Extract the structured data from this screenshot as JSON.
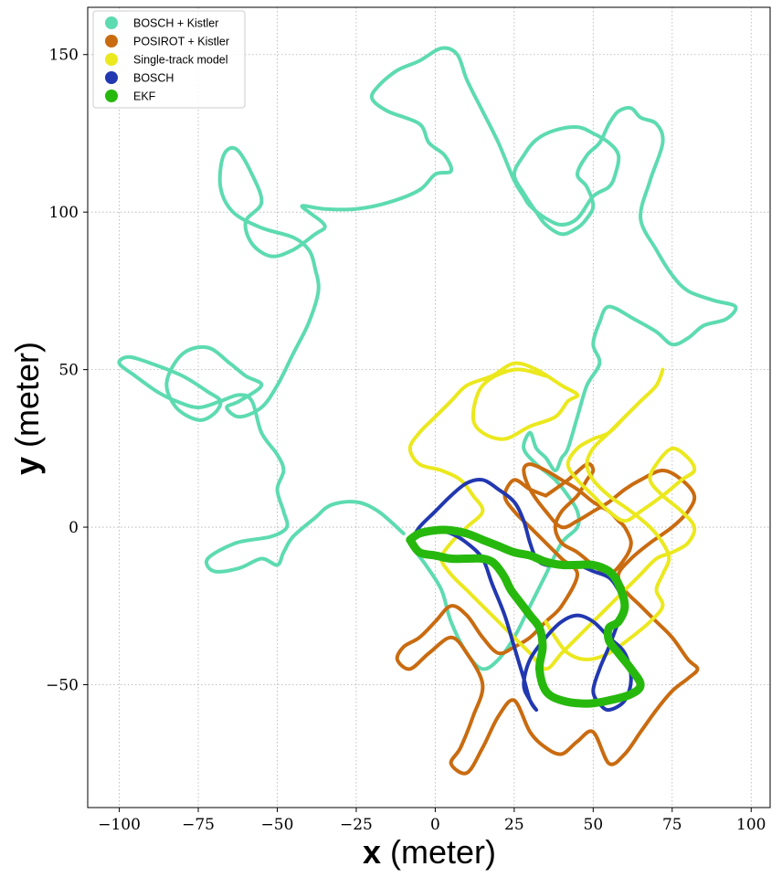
{
  "chart_data": {
    "type": "line",
    "title": "",
    "xlabel_bold": "x",
    "xlabel_unit": "(meter)",
    "ylabel_bold": "y",
    "ylabel_unit": "(meter)",
    "xlim": [
      -110,
      106
    ],
    "ylim": [
      -89,
      165
    ],
    "xticks": [
      -100,
      -75,
      -50,
      -25,
      0,
      25,
      50,
      75,
      100
    ],
    "yticks": [
      -50,
      0,
      50,
      100,
      150
    ],
    "xtick_labels": [
      "−100",
      "−75",
      "−50",
      "−25",
      "0",
      "25",
      "50",
      "75",
      "100"
    ],
    "ytick_labels": [
      "−50",
      "0",
      "50",
      "100",
      "150"
    ],
    "grid": true,
    "grid_style": "dotted",
    "legend_position": "top-left",
    "series": [
      {
        "name": "BOSCH + Kistler",
        "color": "#5ddbb0",
        "x": [
          -10,
          -18,
          -25,
          -33,
          -38,
          -45,
          -48,
          -50,
          -55,
          -62,
          -70,
          -72,
          -63,
          -52,
          -47,
          -48,
          -50,
          -48,
          -50,
          -55,
          -58,
          -62,
          -68,
          -75,
          -82,
          -88,
          -95,
          -100,
          -97,
          -90,
          -80,
          -72,
          -68,
          -70,
          -75,
          -82,
          -85,
          -80,
          -72,
          -65,
          -60,
          -55,
          -62,
          -66,
          -62,
          -55,
          -50,
          -45,
          -40,
          -37,
          -38,
          -40,
          -45,
          -55,
          -64,
          -68,
          -67,
          -63,
          -58,
          -55,
          -60,
          -58,
          -52,
          -45,
          -38,
          -35,
          -36,
          -40,
          -42,
          -35,
          -25,
          -15,
          -5,
          0,
          5,
          3,
          -2,
          -5,
          -15,
          -20,
          -18,
          -12,
          -5,
          2,
          7,
          10,
          15,
          20,
          25,
          28,
          30,
          35,
          40,
          45,
          50,
          55,
          57,
          58,
          55,
          50,
          45,
          38,
          32,
          28,
          25,
          28,
          32,
          35,
          40,
          45,
          48,
          50,
          48,
          45,
          48,
          52,
          55,
          58,
          62,
          65,
          70,
          72,
          68,
          65,
          70,
          75,
          80,
          88,
          95,
          92,
          85,
          80,
          75,
          70,
          63,
          55,
          52,
          50,
          52,
          48,
          45,
          42,
          40,
          38,
          35,
          32,
          30,
          28,
          32,
          38,
          42,
          45,
          45,
          40,
          35,
          30,
          25,
          20,
          15,
          10,
          5,
          2,
          -3,
          -6,
          -8,
          -6,
          -2
        ],
        "y": [
          -2,
          5,
          8,
          7,
          3,
          -3,
          -8,
          -12,
          -10,
          -13,
          -14,
          -10,
          -5,
          -3,
          0,
          5,
          12,
          18,
          23,
          30,
          40,
          42,
          40,
          38,
          40,
          43,
          48,
          52,
          54,
          52,
          48,
          43,
          40,
          36,
          34,
          38,
          46,
          55,
          57,
          52,
          48,
          45,
          40,
          38,
          35,
          38,
          45,
          55,
          65,
          75,
          82,
          88,
          92,
          95,
          100,
          108,
          118,
          120,
          112,
          103,
          97,
          90,
          86,
          88,
          93,
          95,
          97,
          100,
          102,
          101,
          101,
          103,
          107,
          112,
          113,
          118,
          122,
          128,
          132,
          136,
          140,
          145,
          148,
          152,
          150,
          142,
          132,
          122,
          110,
          105,
          102,
          98,
          96,
          98,
          105,
          108,
          112,
          118,
          122,
          125,
          127,
          126,
          123,
          118,
          112,
          106,
          100,
          96,
          93,
          95,
          98,
          102,
          108,
          112,
          118,
          122,
          128,
          132,
          133,
          130,
          128,
          122,
          110,
          98,
          88,
          80,
          75,
          72,
          70,
          66,
          64,
          60,
          58,
          62,
          66,
          70,
          65,
          58,
          52,
          45,
          35,
          25,
          22,
          18,
          22,
          25,
          30,
          25,
          20,
          15,
          10,
          5,
          0,
          -5,
          -15,
          -25,
          -35,
          -42,
          -45,
          -40,
          -30,
          -20,
          -12,
          -8,
          -5,
          -3,
          -2
        ]
      },
      {
        "name": "POSIROT + Kistler",
        "color": "#c96b10",
        "x": [
          35,
          30,
          25,
          22,
          25,
          30,
          35,
          40,
          45,
          40,
          35,
          30,
          25,
          20,
          15,
          10,
          5,
          0,
          -5,
          -10,
          -12,
          -8,
          -2,
          5,
          10,
          15,
          12,
          8,
          5,
          10,
          15,
          20,
          25,
          30,
          35,
          40,
          45,
          50,
          55,
          60,
          65,
          70,
          75,
          80,
          83,
          80,
          75,
          70,
          65,
          60,
          58,
          62,
          68,
          75,
          80,
          82,
          78,
          72,
          65,
          60,
          55,
          50,
          45,
          40,
          35,
          30,
          28,
          30,
          35,
          40,
          45,
          50,
          55,
          58,
          60,
          62,
          60,
          55,
          50,
          45,
          40,
          38,
          40,
          45,
          48,
          50,
          48,
          42,
          35
        ],
        "y": [
          10,
          12,
          15,
          10,
          5,
          0,
          -5,
          -10,
          -15,
          -25,
          -30,
          -35,
          -38,
          -40,
          -35,
          -28,
          -25,
          -30,
          -35,
          -38,
          -42,
          -45,
          -40,
          -35,
          -40,
          -50,
          -60,
          -70,
          -75,
          -78,
          -70,
          -60,
          -55,
          -65,
          -70,
          -72,
          -68,
          -65,
          -75,
          -72,
          -65,
          -58,
          -52,
          -48,
          -45,
          -42,
          -35,
          -30,
          -25,
          -20,
          -15,
          -10,
          -5,
          0,
          5,
          10,
          15,
          18,
          15,
          12,
          8,
          5,
          2,
          0,
          5,
          12,
          18,
          20,
          18,
          15,
          12,
          8,
          5,
          2,
          0,
          -5,
          -10,
          -15,
          -12,
          -8,
          -5,
          0,
          5,
          10,
          15,
          18,
          20,
          15,
          10
        ]
      },
      {
        "name": "Single-track model",
        "color": "#ebe81e",
        "x": [
          35,
          25,
          15,
          12,
          15,
          22,
          30,
          38,
          42,
          45,
          40,
          32,
          25,
          18,
          10,
          5,
          0,
          -5,
          -8,
          -5,
          2,
          8,
          12,
          15,
          10,
          5,
          2,
          5,
          10,
          15,
          20,
          25,
          30,
          35,
          40,
          45,
          50,
          55,
          60,
          65,
          70,
          75,
          80,
          82,
          78,
          72,
          68,
          70,
          75,
          80,
          82,
          78,
          72,
          65,
          60,
          55,
          50,
          45,
          42,
          45,
          50,
          55,
          60,
          65,
          70,
          72,
          70,
          65,
          60,
          55,
          50,
          48,
          50,
          55,
          62,
          68,
          72,
          74,
          72,
          70,
          72,
          68,
          62,
          55,
          48,
          42,
          38,
          35
        ],
        "y": [
          48,
          50,
          45,
          35,
          30,
          28,
          32,
          35,
          40,
          42,
          45,
          50,
          52,
          48,
          45,
          40,
          35,
          30,
          25,
          20,
          18,
          15,
          10,
          5,
          0,
          -5,
          -10,
          -15,
          -20,
          -25,
          -30,
          -35,
          -40,
          -45,
          -40,
          -35,
          -30,
          -25,
          -20,
          -15,
          -10,
          -8,
          -5,
          0,
          5,
          10,
          15,
          20,
          25,
          22,
          18,
          15,
          10,
          5,
          2,
          5,
          10,
          15,
          20,
          25,
          28,
          30,
          35,
          40,
          45,
          50,
          45,
          40,
          35,
          30,
          25,
          20,
          15,
          10,
          5,
          0,
          -5,
          -10,
          -15,
          -20,
          -25,
          -30,
          -35,
          -40,
          -42,
          -40,
          -35,
          -30
        ]
      },
      {
        "name": "BOSCH",
        "color": "#2238b0",
        "x": [
          -8,
          -5,
          0,
          5,
          10,
          15,
          20,
          25,
          28,
          30,
          32,
          35,
          40,
          45,
          50,
          55,
          58,
          60,
          58,
          55,
          52,
          50,
          52,
          55,
          60,
          62,
          60,
          55,
          50,
          45,
          40,
          35,
          30,
          28,
          30,
          32,
          30,
          28,
          25,
          22,
          18,
          15,
          10,
          5,
          0,
          -5,
          -8
        ],
        "y": [
          -5,
          0,
          5,
          10,
          14,
          15,
          12,
          8,
          2,
          -5,
          -10,
          -12,
          -12,
          -12,
          -14,
          -16,
          -20,
          -25,
          -30,
          -38,
          -45,
          -52,
          -56,
          -58,
          -55,
          -48,
          -40,
          -35,
          -30,
          -28,
          -30,
          -35,
          -42,
          -50,
          -55,
          -58,
          -55,
          -48,
          -38,
          -28,
          -18,
          -10,
          -5,
          -2,
          -1,
          -2,
          -5
        ]
      },
      {
        "name": "EKF",
        "color": "#27b80d",
        "x": [
          -8,
          -5,
          0,
          5,
          10,
          15,
          20,
          25,
          30,
          35,
          40,
          45,
          50,
          55,
          58,
          60,
          58,
          55,
          55,
          58,
          62,
          65,
          62,
          55,
          48,
          40,
          35,
          33,
          34,
          33,
          30,
          27,
          24,
          22,
          20,
          18,
          15,
          10,
          5,
          0,
          -5,
          -8
        ],
        "y": [
          -4,
          -2,
          -1,
          -1,
          -2,
          -4,
          -6,
          -8,
          -9,
          -11,
          -12,
          -12,
          -12,
          -14,
          -18,
          -25,
          -30,
          -32,
          -36,
          -40,
          -45,
          -50,
          -53,
          -55,
          -56,
          -55,
          -52,
          -45,
          -38,
          -32,
          -28,
          -24,
          -20,
          -16,
          -13,
          -11,
          -10,
          -10,
          -10,
          -9,
          -8,
          -4
        ]
      }
    ]
  }
}
